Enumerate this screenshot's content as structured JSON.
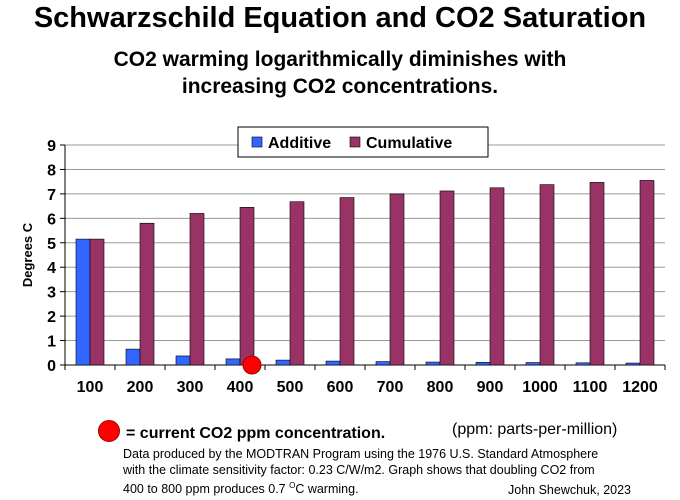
{
  "chart_data": {
    "type": "bar",
    "title": "Schwarzschild Equation and CO2 Saturation",
    "subtitle_lines": [
      "CO2 warming logarithmically diminishes with",
      "increasing CO2 concentrations."
    ],
    "xlabel": "",
    "ylabel": "Degrees C",
    "ylim": [
      0,
      9
    ],
    "yticks": [
      "0",
      "1",
      "2",
      "3",
      "4",
      "5",
      "6",
      "7",
      "8",
      "9"
    ],
    "grid": true,
    "legend_position": "top",
    "categories": [
      "100",
      "200",
      "300",
      "400",
      "500",
      "600",
      "700",
      "800",
      "900",
      "1000",
      "1100",
      "1200"
    ],
    "series": [
      {
        "name": "Additive",
        "color": "#3366ff",
        "values": [
          5.15,
          0.65,
          0.37,
          0.25,
          0.2,
          0.16,
          0.14,
          0.12,
          0.11,
          0.1,
          0.09,
          0.08
        ]
      },
      {
        "name": "Cumulative",
        "color": "#993366",
        "values": [
          5.15,
          5.8,
          6.2,
          6.45,
          6.68,
          6.85,
          7.0,
          7.12,
          7.25,
          7.38,
          7.47,
          7.55
        ]
      }
    ],
    "marker": {
      "category": "400",
      "value": 0,
      "color": "#ff0000"
    }
  },
  "notes": {
    "current_marker": "= current CO2 ppm concentration.",
    "ppm": "(ppm: parts-per-million)",
    "footer_line1": "Data produced by the MODTRAN Program using the 1976 U.S. Standard Atmosphere",
    "footer_line2": "with the climate sensitivity factor: 0.23 C/W/m2.  Graph shows that doubling CO2 from",
    "footer_line3a": "400 to 800 ppm produces 0.7 ",
    "footer_line3_sup": "O",
    "footer_line3b": "C warming.",
    "author": "John Shewchuk, 2023"
  }
}
